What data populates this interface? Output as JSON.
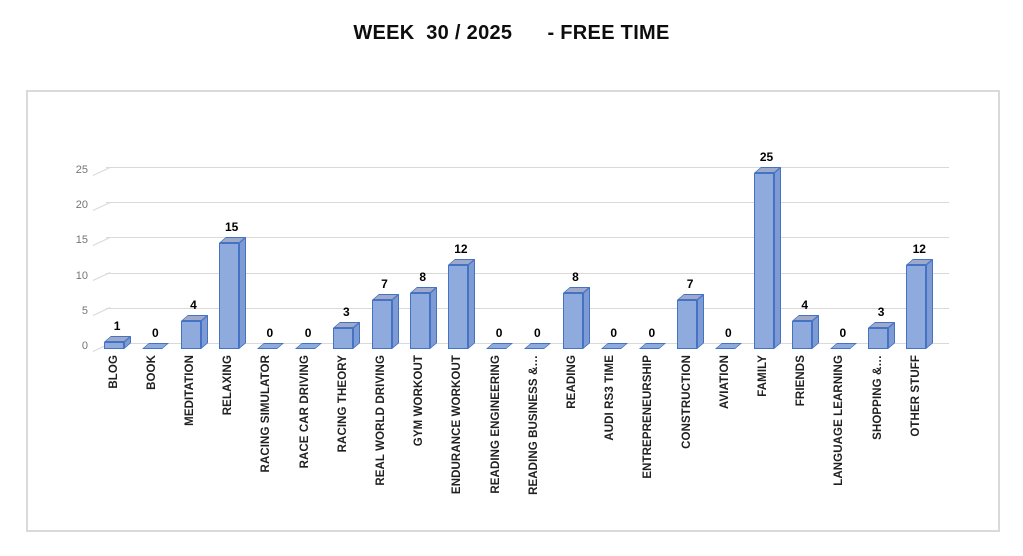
{
  "chart_data": {
    "type": "bar",
    "style": "3d-column",
    "title": "WEEK  30 / 2025      - FREE TIME",
    "categories": [
      "BLOG",
      "BOOK",
      "MEDITATION",
      "RELAXING",
      "RACING SIMULATOR",
      "RACE CAR DRIVING",
      "RACING THEORY",
      "REAL WORLD DRIVING",
      "GYM WORKOUT",
      "ENDURANCE WORKOUT",
      "READING ENGINEERING",
      "READING BUSINESS &…",
      "READING",
      "AUDI RS3 TIME",
      "ENTREPRENEURSHIP",
      "CONSTRUCTION",
      "AVIATION",
      "FAMILY",
      "FRIENDS",
      "LANGUAGE LEARNING",
      "SHOPPING &…",
      "OTHER STUFF"
    ],
    "values": [
      1,
      0,
      4,
      15,
      0,
      0,
      3,
      7,
      8,
      12,
      0,
      0,
      8,
      0,
      0,
      7,
      0,
      25,
      4,
      0,
      3,
      12
    ],
    "data_labels": [
      "1",
      "0",
      "4",
      "15",
      "0",
      "0",
      "3",
      "7",
      "8",
      "12",
      "0",
      "0",
      "8",
      "0",
      "0",
      "7",
      "0",
      "25",
      "4",
      "0",
      "3",
      "12"
    ],
    "yticks": [
      0,
      5,
      10,
      15,
      20,
      25
    ],
    "ytick_labels": [
      "0",
      "5",
      "10",
      "15",
      "20",
      "25"
    ],
    "ylim": [
      0,
      26
    ],
    "xlabel": "",
    "ylabel": "",
    "grid": true,
    "legend": "none",
    "colors": {
      "bar_front": "#8FAADC",
      "bar_side": "#7F9BD3",
      "bar_top": "#9FA9C9",
      "bar_border": "#4472C4",
      "gridline": "#D9D9D9",
      "tick_label": "#757575",
      "data_label": "#000000",
      "category_label": "#1F1F1F",
      "chart_border": "#DADADA",
      "background": "#FFFFFF"
    }
  }
}
